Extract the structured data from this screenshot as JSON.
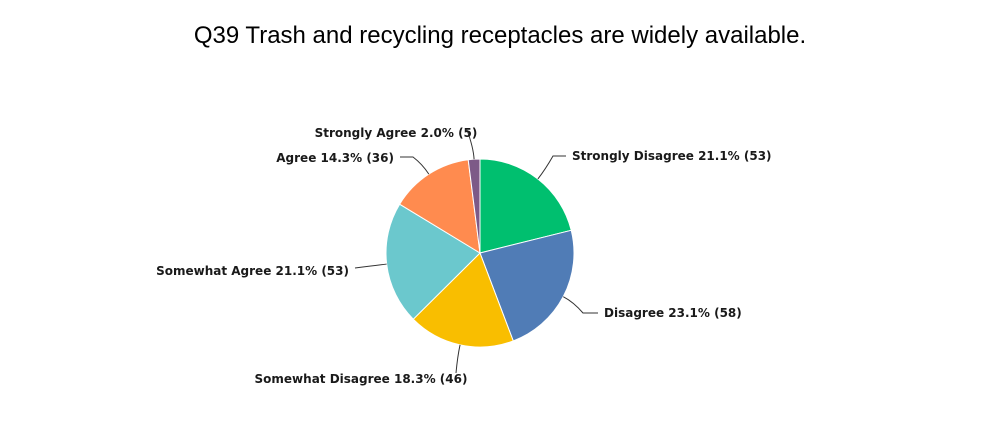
{
  "chart_data": {
    "type": "pie",
    "title": "Q39 Trash and recycling receptacles are widely available.",
    "slices": [
      {
        "name": "Strongly Disagree",
        "percent": 21.1,
        "count": 53,
        "color": "#00bf6f",
        "label": "Strongly Disagree 21.1% (53)"
      },
      {
        "name": "Disagree",
        "percent": 23.1,
        "count": 58,
        "color": "#507cb6",
        "label": "Disagree 23.1% (58)"
      },
      {
        "name": "Somewhat Disagree",
        "percent": 18.3,
        "count": 46,
        "color": "#f9be00",
        "label": "Somewhat Disagree 18.3% (46)"
      },
      {
        "name": "Somewhat Agree",
        "percent": 21.1,
        "count": 53,
        "color": "#6bc8cd",
        "label": "Somewhat Agree 21.1% (53)"
      },
      {
        "name": "Agree",
        "percent": 14.3,
        "count": 36,
        "color": "#ff8b4f",
        "label": "Agree 14.3% (36)"
      },
      {
        "name": "Strongly Agree",
        "percent": 2.0,
        "count": 5,
        "color": "#7d5a87",
        "label": "Strongly Agree 2.0% (5)"
      }
    ],
    "start": "12 o'clock",
    "direction": "clockwise",
    "legend": "none",
    "data_labels": "outside with leader lines"
  }
}
